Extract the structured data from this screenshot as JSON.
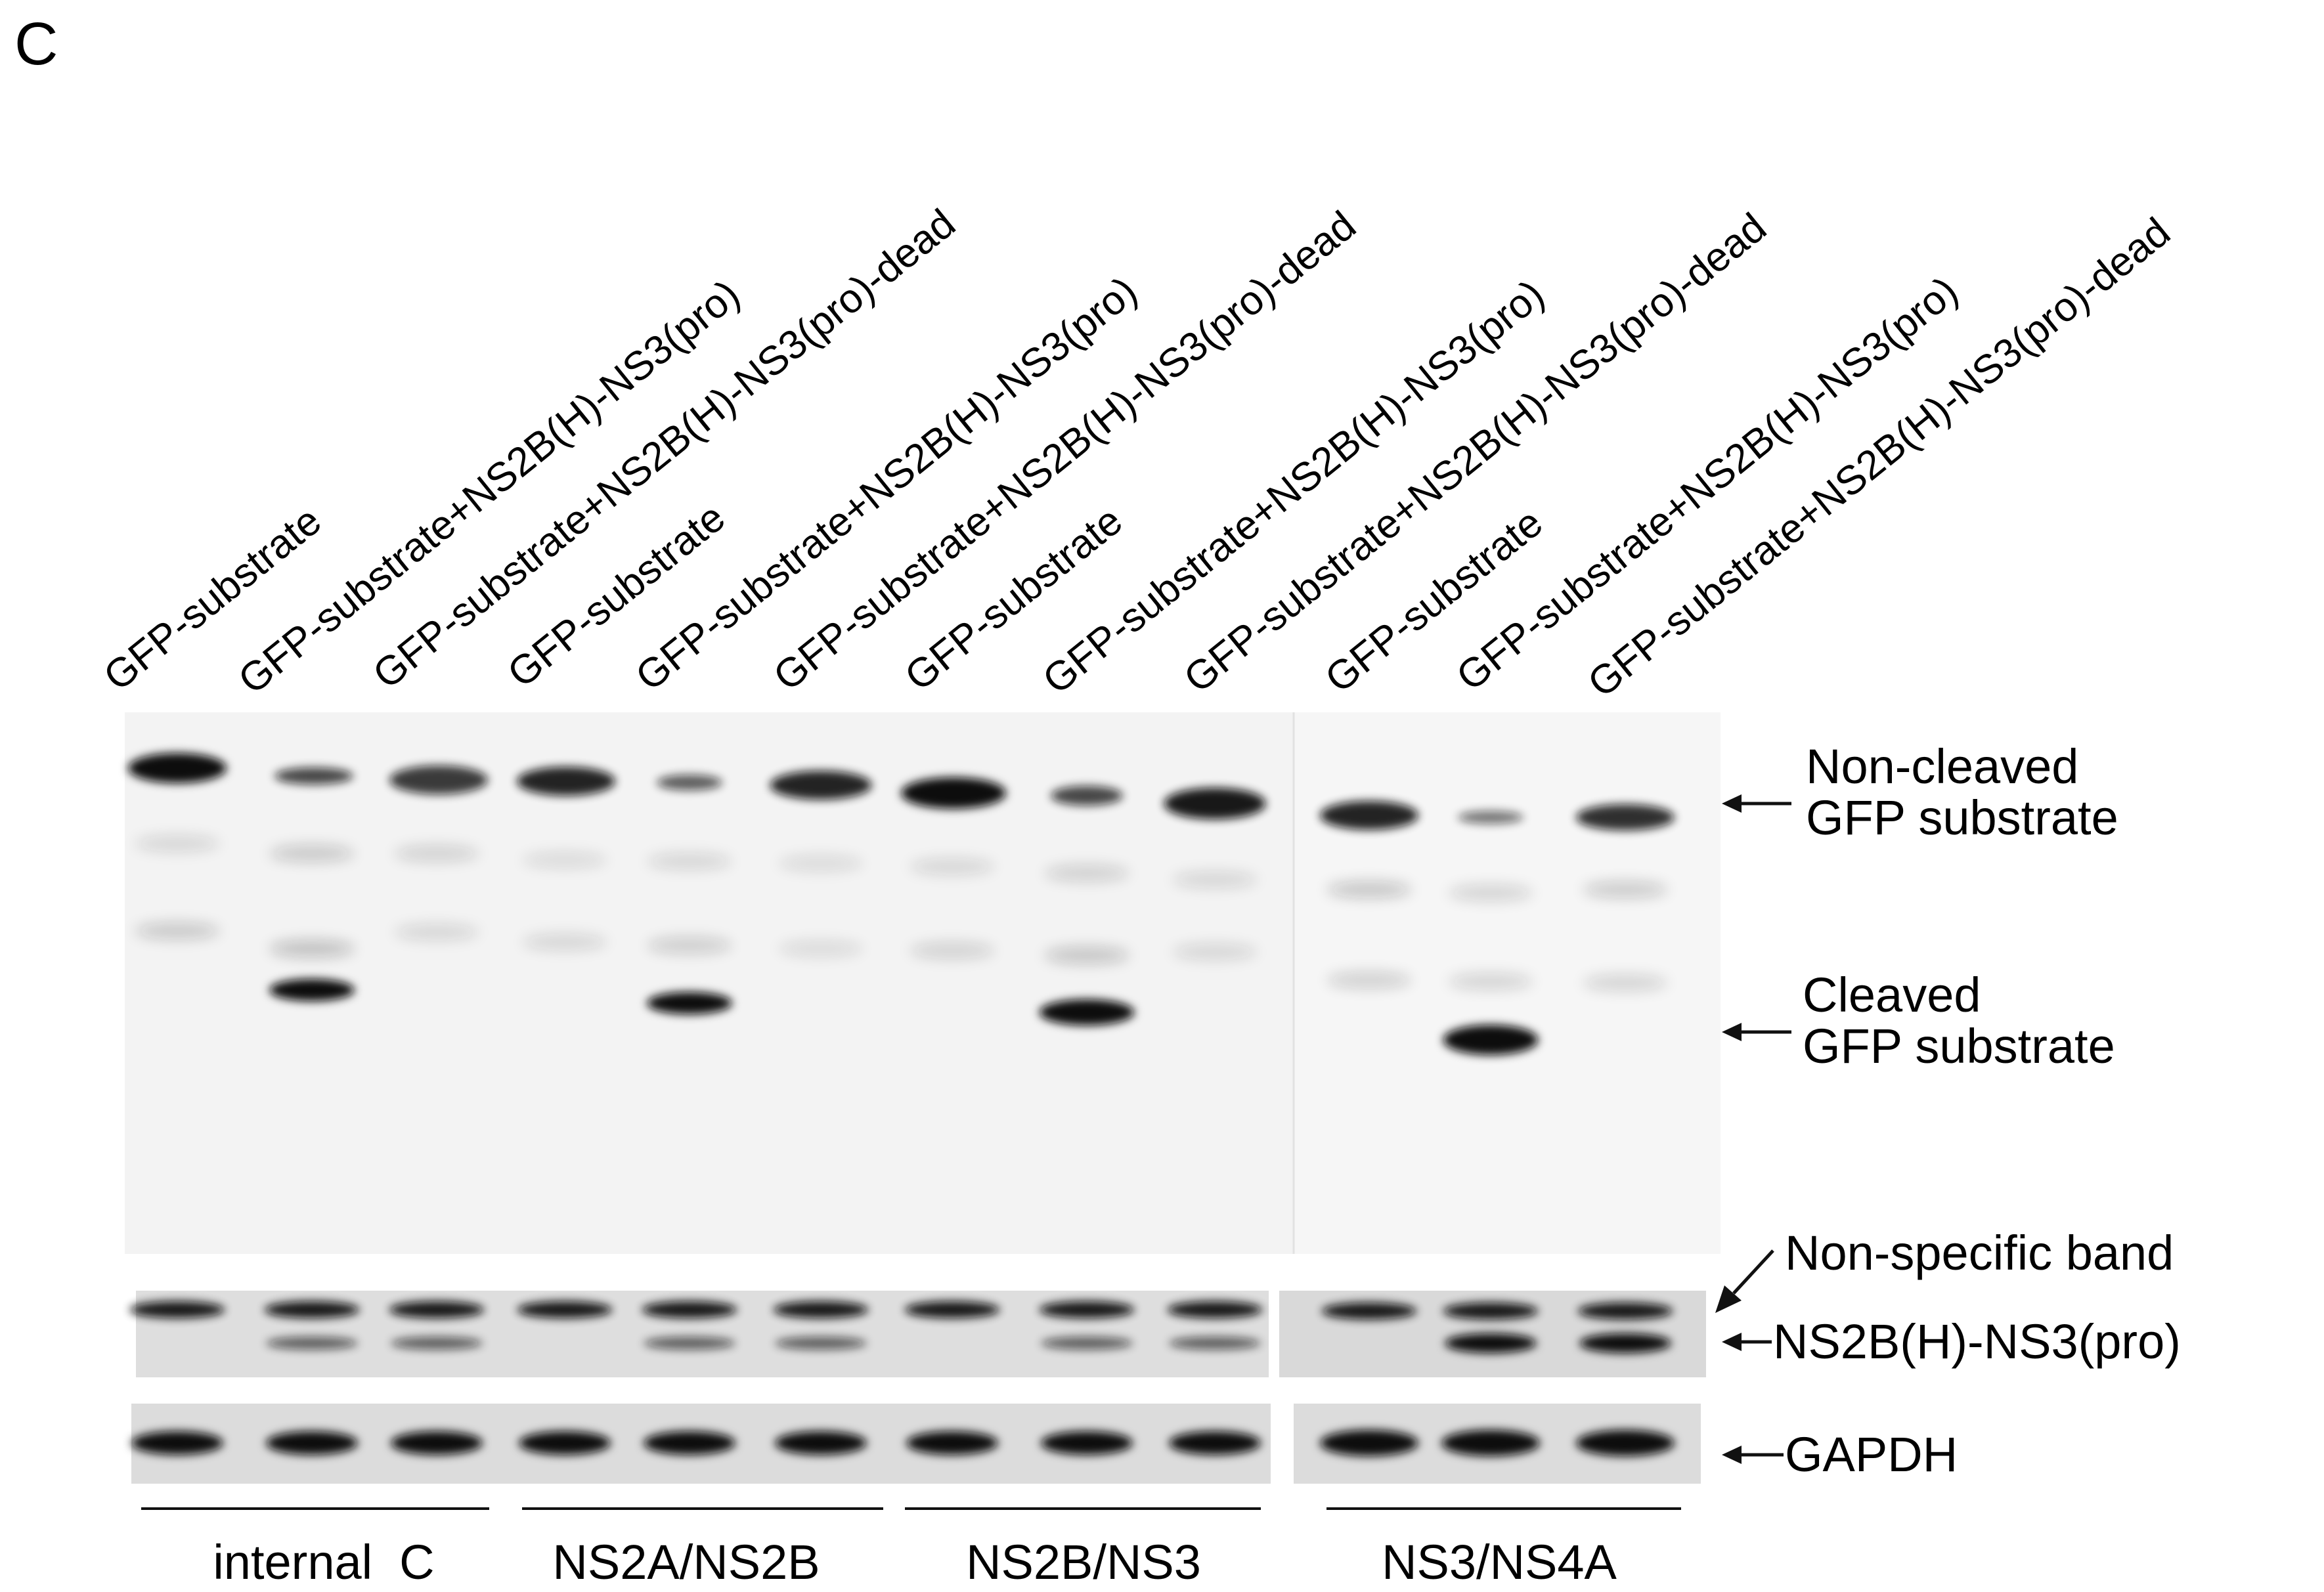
{
  "panel_letter": "C",
  "lane_labels": [
    "GFP-substrate",
    "GFP-substrate+NS2B(H)-NS3(pro)",
    "GFP-substrate+NS2B(H)-NS3(pro)-dead",
    "GFP-substrate",
    "GFP-substrate+NS2B(H)-NS3(pro)",
    "GFP-substrate+NS2B(H)-NS3(pro)-dead",
    "GFP-substrate",
    "GFP-substrate+NS2B(H)-NS3(pro)",
    "GFP-substrate+NS2B(H)-NS3(pro)-dead",
    "GFP-substrate",
    "GFP-substrate+NS2B(H)-NS3(pro)",
    "GFP-substrate+NS2B(H)-NS3(pro)-dead"
  ],
  "band_labels": {
    "non_cleaved_line1": "Non-cleaved",
    "non_cleaved_line2": "GFP substrate",
    "cleaved_line1": "Cleaved",
    "cleaved_line2": "GFP substrate",
    "non_specific": "Non-specific band",
    "ns2b_ns3": "NS2B(H)-NS3(pro)",
    "gapdh": "GAPDH"
  },
  "group_labels": [
    "internal  C",
    "NS2A/NS2B",
    "NS2B/NS3",
    "NS3/NS4A"
  ],
  "colors": {
    "band": "#0b0b0b",
    "blot_background": "#f4f4f4",
    "strip_background": "#dcdcdc",
    "text": "#111111"
  }
}
